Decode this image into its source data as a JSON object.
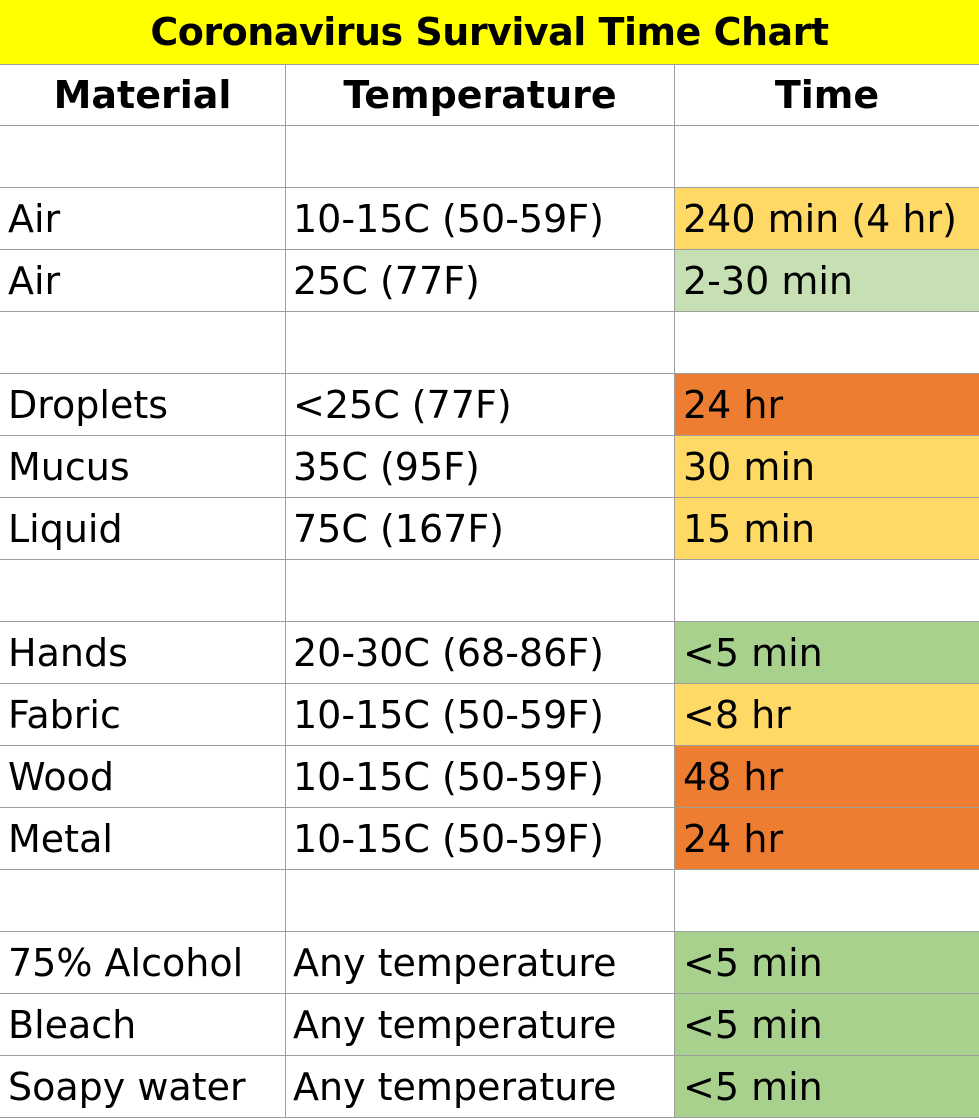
{
  "title": "Coronavirus Survival Time Chart",
  "colors": {
    "title_bg": "#ffff00",
    "long": "#ed7d31",
    "medium": "#ffd966",
    "light_green": "#c6e0b4",
    "green": "#a9d18e",
    "none": "#ffffff"
  },
  "headers": {
    "material": "Material",
    "temperature": "Temperature",
    "time": "Time"
  },
  "rows": [
    {
      "material": "",
      "temperature": "",
      "time": "",
      "color": "none"
    },
    {
      "material": "Air",
      "temperature": "10-15C (50-59F)",
      "time": "240 min (4 hr)",
      "color": "medium"
    },
    {
      "material": "Air",
      "temperature": "25C (77F)",
      "time": "2-30 min",
      "color": "light_green"
    },
    {
      "material": "",
      "temperature": "",
      "time": "",
      "color": "none"
    },
    {
      "material": "Droplets",
      "temperature": "<25C (77F)",
      "time": "24 hr",
      "color": "long"
    },
    {
      "material": "Mucus",
      "temperature": "35C (95F)",
      "time": "30 min",
      "color": "medium"
    },
    {
      "material": "Liquid",
      "temperature": "75C (167F)",
      "time": "15 min",
      "color": "medium"
    },
    {
      "material": "",
      "temperature": "",
      "time": "",
      "color": "none"
    },
    {
      "material": "Hands",
      "temperature": "20-30C (68-86F)",
      "time": "<5 min",
      "color": "green"
    },
    {
      "material": "Fabric",
      "temperature": "10-15C (50-59F)",
      "time": "<8 hr",
      "color": "medium"
    },
    {
      "material": "Wood",
      "temperature": "10-15C (50-59F)",
      "time": "48 hr",
      "color": "long"
    },
    {
      "material": "Metal",
      "temperature": "10-15C (50-59F)",
      "time": "24 hr",
      "color": "long"
    },
    {
      "material": "",
      "temperature": "",
      "time": "",
      "color": "none"
    },
    {
      "material": "75% Alcohol",
      "temperature": "Any temperature",
      "time": "<5 min",
      "color": "green"
    },
    {
      "material": "Bleach",
      "temperature": "Any temperature",
      "time": "<5 min",
      "color": "green"
    },
    {
      "material": "Soapy water",
      "temperature": "Any temperature",
      "time": "<5 min",
      "color": "green"
    }
  ]
}
